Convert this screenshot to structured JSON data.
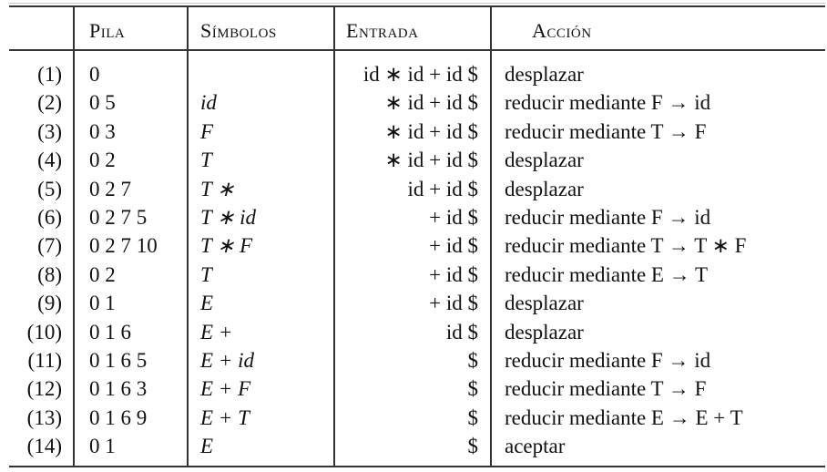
{
  "headers": {
    "pila": "Pila",
    "simbolos": "Símbolos",
    "entrada": "Entrada",
    "accion": "Acción"
  },
  "rows": [
    {
      "num": "(1)",
      "pila": "0",
      "simbolos": "",
      "entrada": "id ∗ id + id $",
      "accion": "desplazar"
    },
    {
      "num": "(2)",
      "pila": "0 5",
      "simbolos": "id",
      "entrada": "∗ id + id $",
      "accion": "reducir mediante F → id"
    },
    {
      "num": "(3)",
      "pila": "0 3",
      "simbolos": "F",
      "entrada": "∗ id + id $",
      "accion": "reducir mediante T → F"
    },
    {
      "num": "(4)",
      "pila": "0 2",
      "simbolos": "T",
      "entrada": "∗ id + id $",
      "accion": "desplazar"
    },
    {
      "num": "(5)",
      "pila": "0 2 7",
      "simbolos": "T ∗",
      "entrada": "id + id $",
      "accion": "desplazar"
    },
    {
      "num": "(6)",
      "pila": "0 2 7 5",
      "simbolos": "T ∗ id",
      "entrada": "+ id $",
      "accion": "reducir mediante F → id"
    },
    {
      "num": "(7)",
      "pila": "0 2 7 10",
      "simbolos": "T ∗ F",
      "entrada": "+ id $",
      "accion": "reducir mediante T → T ∗ F"
    },
    {
      "num": "(8)",
      "pila": "0 2",
      "simbolos": "T",
      "entrada": "+ id $",
      "accion": "reducir mediante E → T"
    },
    {
      "num": "(9)",
      "pila": "0 1",
      "simbolos": "E",
      "entrada": "+ id $",
      "accion": "desplazar"
    },
    {
      "num": "(10)",
      "pila": "0 1 6",
      "simbolos": "E +",
      "entrada": "id $",
      "accion": "desplazar"
    },
    {
      "num": "(11)",
      "pila": "0 1 6 5",
      "simbolos": "E + id",
      "entrada": "$",
      "accion": "reducir mediante F → id"
    },
    {
      "num": "(12)",
      "pila": "0 1 6 3",
      "simbolos": "E + F",
      "entrada": "$",
      "accion": "reducir mediante T → F"
    },
    {
      "num": "(13)",
      "pila": "0 1 6 9",
      "simbolos": "E + T",
      "entrada": "$",
      "accion": "reducir mediante E → E + T"
    },
    {
      "num": "(14)",
      "pila": "0 1",
      "simbolos": "E",
      "entrada": "$",
      "accion": "aceptar"
    }
  ]
}
